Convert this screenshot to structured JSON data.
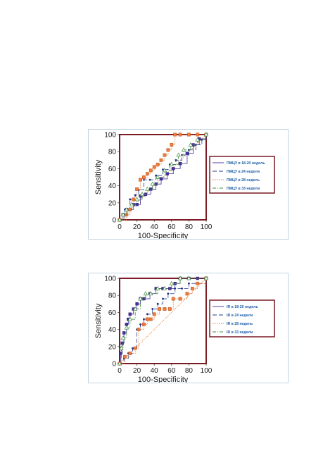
{
  "chart_data": [
    {
      "type": "line",
      "xlabel": "100-Specificity",
      "ylabel": "Sensitivity",
      "xlim": [
        0,
        100
      ],
      "ylim": [
        0,
        100
      ],
      "xticks": [
        "0",
        "20",
        "40",
        "60",
        "80",
        "100"
      ],
      "yticks": [
        "0",
        "20",
        "40",
        "60",
        "80",
        "100"
      ],
      "legend_position": "right",
      "series": [
        {
          "name": "ПМЦУ в 18-20 недель",
          "color": "#3a2fa0",
          "marker": "square-dark",
          "x": [
            0,
            4,
            8,
            12,
            16,
            20,
            24,
            30,
            36,
            42,
            48,
            55,
            62,
            70,
            78,
            85,
            92,
            100
          ],
          "y": [
            0,
            6,
            12,
            12,
            18,
            18,
            28,
            30,
            36,
            42,
            48,
            54,
            60,
            66,
            78,
            88,
            95,
            100
          ]
        },
        {
          "name": "ПМЦУ в 24 недели",
          "color": "#1f3f8f",
          "marker": "dot",
          "x": [
            0,
            6,
            12,
            18,
            22,
            28,
            35,
            42,
            50,
            58,
            65,
            72,
            80,
            88,
            95,
            100
          ],
          "y": [
            0,
            12,
            24,
            29,
            35,
            47,
            47,
            52,
            59,
            65,
            70,
            76,
            82,
            88,
            94,
            100
          ]
        },
        {
          "name": "ПМЦУ в 28 недель",
          "color": "#e8732a",
          "marker": "square-orange",
          "x": [
            0,
            8,
            12,
            16,
            20,
            24,
            28,
            32,
            36,
            40,
            44,
            48,
            52,
            56,
            60,
            64,
            70,
            80,
            90,
            100
          ],
          "y": [
            0,
            6,
            12,
            24,
            36,
            47,
            50,
            54,
            58,
            62,
            65,
            70,
            76,
            82,
            88,
            100,
            100,
            100,
            100,
            100
          ]
        },
        {
          "name": "ПМЦУ в 33 недели",
          "color": "#3c8c3c",
          "marker": "triangle",
          "x": [
            0,
            4,
            8,
            14,
            20,
            26,
            32,
            38,
            44,
            52,
            60,
            68,
            74,
            82,
            90,
            100
          ],
          "y": [
            0,
            6,
            12,
            18,
            24,
            30,
            36,
            42,
            50,
            58,
            65,
            76,
            82,
            88,
            94,
            100
          ]
        }
      ]
    },
    {
      "type": "line",
      "xlabel": "100-Specificity",
      "ylabel": "Sensitivity",
      "xlim": [
        0,
        100
      ],
      "ylim": [
        0,
        100
      ],
      "xticks": [
        "0",
        "20",
        "40",
        "60",
        "80",
        "100"
      ],
      "yticks": [
        "0",
        "20",
        "40",
        "60",
        "80",
        "100"
      ],
      "legend_position": "right",
      "series": [
        {
          "name": "IR в 18-20 недель",
          "color": "#3a2fa0",
          "marker": "square-dark",
          "x": [
            0,
            1,
            3,
            5,
            8,
            10,
            12,
            16,
            20,
            24,
            28,
            35,
            42,
            50,
            58,
            64,
            70,
            80,
            90,
            100
          ],
          "y": [
            0,
            12,
            24,
            36,
            46,
            52,
            58,
            64,
            70,
            76,
            76,
            82,
            88,
            88,
            88,
            94,
            100,
            100,
            100,
            100
          ]
        },
        {
          "name": "IR в 24 недели",
          "color": "#1f3f8f",
          "marker": "dot",
          "x": [
            0,
            5,
            10,
            15,
            20,
            24,
            28,
            32,
            38,
            44,
            50,
            56,
            64,
            72,
            80,
            90,
            100
          ],
          "y": [
            0,
            6,
            12,
            18,
            40,
            46,
            52,
            58,
            64,
            70,
            76,
            82,
            88,
            88,
            94,
            94,
            100
          ]
        },
        {
          "name": "IR в 28 недель",
          "color": "#e8732a",
          "marker": "square-orange",
          "x": [
            0,
            6,
            12,
            18,
            22,
            28,
            32,
            36,
            40,
            46,
            52,
            58,
            62,
            70,
            78,
            84,
            90,
            100
          ],
          "y": [
            0,
            8,
            12,
            18,
            40,
            46,
            52,
            52,
            58,
            64,
            64,
            64,
            76,
            76,
            82,
            88,
            94,
            100
          ]
        },
        {
          "name": "IR в 33 недели",
          "color": "#3c8c3c",
          "marker": "triangle",
          "x": [
            0,
            2,
            4,
            8,
            12,
            18,
            24,
            30,
            36,
            44,
            52,
            60,
            70,
            80,
            100
          ],
          "y": [
            0,
            18,
            30,
            42,
            52,
            64,
            76,
            82,
            82,
            88,
            88,
            94,
            100,
            100,
            100
          ]
        }
      ]
    }
  ]
}
